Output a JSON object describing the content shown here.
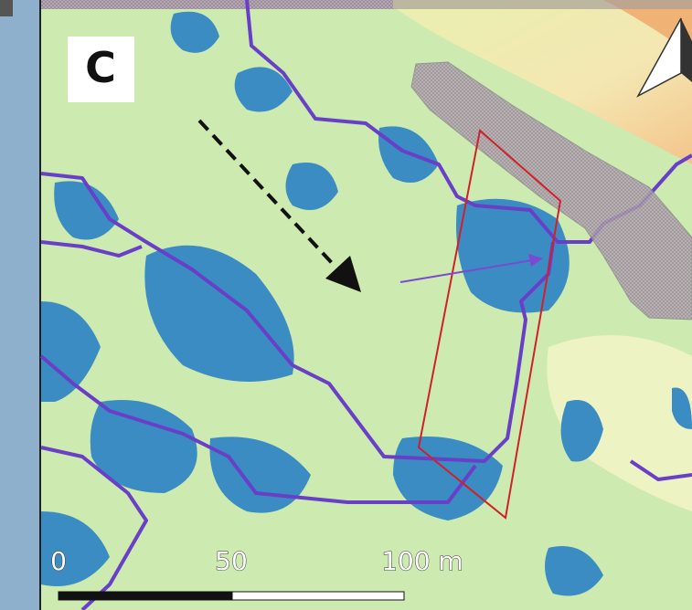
{
  "panel": {
    "label": "C"
  },
  "scale_bar": {
    "labels": [
      "0",
      "50",
      "100 m"
    ]
  }
}
